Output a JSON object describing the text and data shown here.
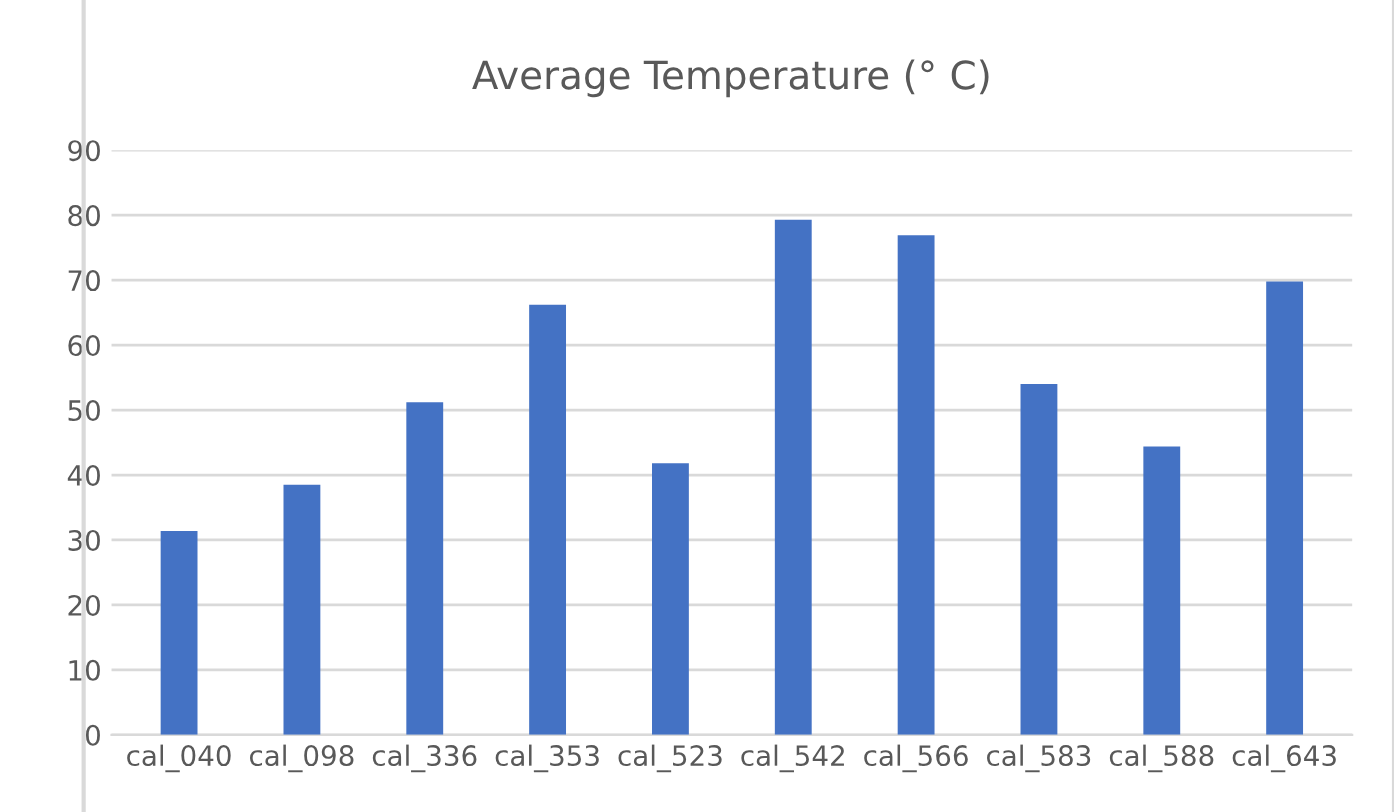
{
  "chart_data": {
    "type": "bar",
    "title": "Average Temperature (° C)",
    "categories": [
      "cal_040",
      "cal_098",
      "cal_336",
      "cal_353",
      "cal_523",
      "cal_542",
      "cal_566",
      "cal_583",
      "cal_588",
      "cal_643"
    ],
    "values": [
      31.4,
      38.5,
      51.2,
      66.2,
      41.8,
      79.3,
      76.9,
      54.0,
      44.4,
      69.8
    ],
    "color": "#4472c4",
    "ylim": [
      0,
      90
    ],
    "yticks": [
      0,
      10,
      20,
      30,
      40,
      50,
      60,
      70,
      80,
      90
    ],
    "grid": "y"
  }
}
